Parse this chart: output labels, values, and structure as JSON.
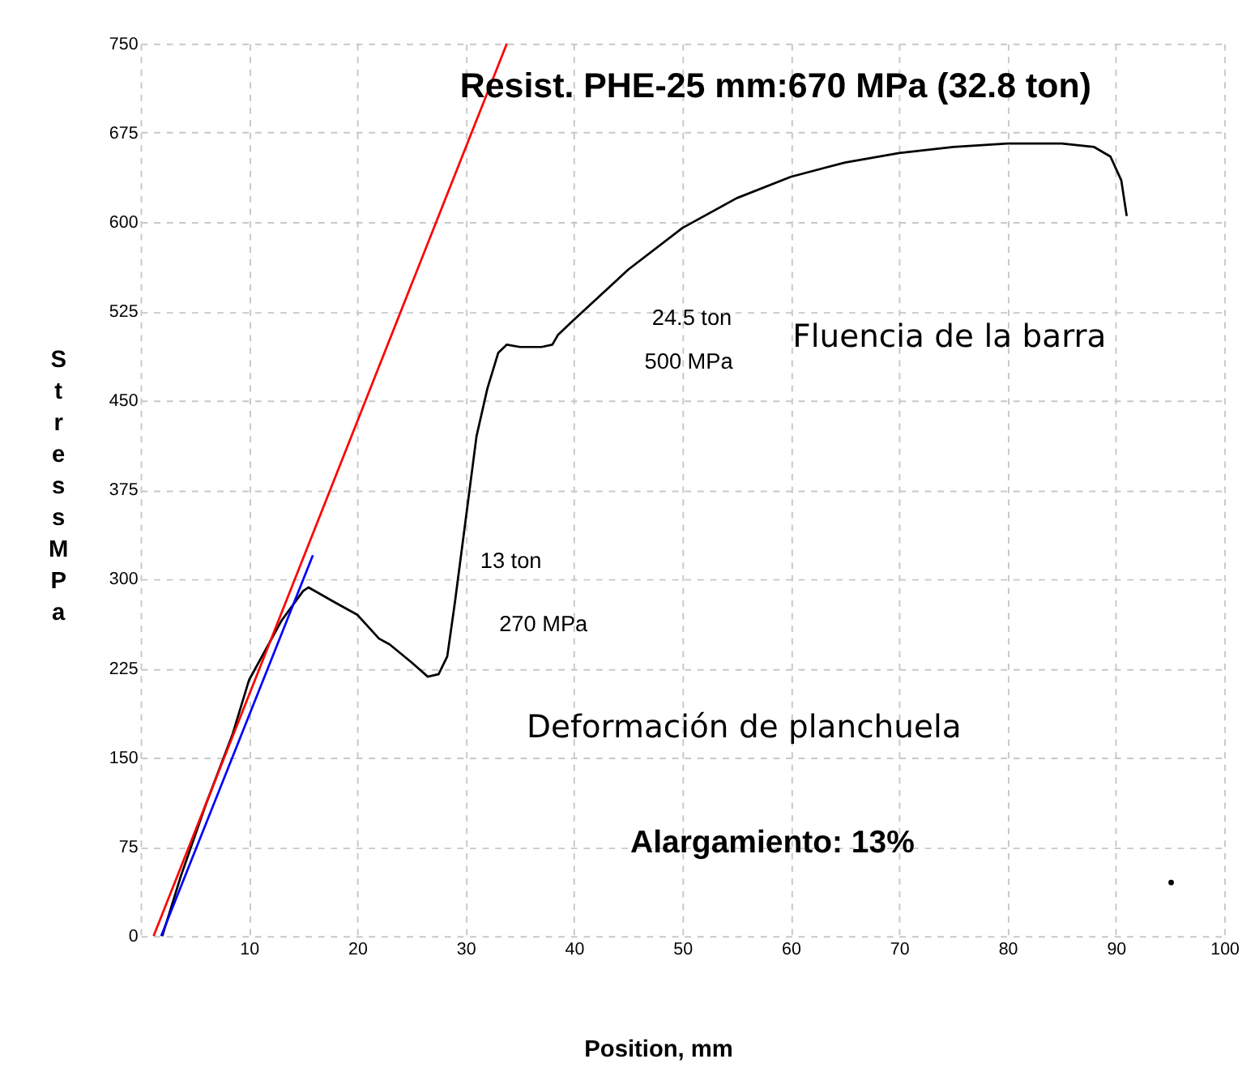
{
  "chart_data": {
    "type": "line",
    "title": "Resist. PHE-25 mm:670 MPa (32.8 ton)",
    "xlabel": "Position, mm",
    "ylabel": "Stress MPa",
    "annotations": [
      "13 ton",
      "270 MPa",
      "24.5 ton",
      "500 MPa",
      "Fluencia de la barra",
      "Deformación de planchuela",
      "Alargamiento: 13%"
    ],
    "xlim": [
      0,
      100
    ],
    "xticks": [
      {
        "value": 0,
        "label": null
      },
      10,
      20,
      30,
      40,
      50,
      60,
      70,
      80,
      90,
      100
    ],
    "ylim": [
      0,
      750
    ],
    "yticks": [
      0,
      75,
      150,
      225,
      300,
      375,
      450,
      525,
      600,
      675,
      750
    ],
    "grid": true,
    "marker": "none",
    "line_style": "solid",
    "series": [
      {
        "color": "#000000",
        "x": [
          2,
          3.7,
          6,
          8.5,
          10,
          13,
          15,
          15.5,
          18,
          20,
          22,
          23,
          25,
          26.5,
          27.5,
          28.3,
          29,
          30,
          31,
          32,
          33,
          33.8,
          35,
          37,
          38,
          38.5,
          40,
          45,
          50,
          55,
          60,
          65,
          70,
          75,
          80,
          85,
          88,
          89.5,
          90.5,
          91
        ],
        "values": [
          0,
          50,
          110,
          170,
          215,
          265,
          290,
          293,
          280,
          270,
          250,
          245,
          230,
          218,
          220,
          235,
          280,
          350,
          420,
          460,
          490,
          497,
          495,
          495,
          497,
          505,
          518,
          560,
          595,
          620,
          638,
          650,
          658,
          663,
          666,
          666,
          663,
          655,
          635,
          605
        ]
      },
      {
        "color": "#ff0000",
        "x": [
          1.2,
          33.8
        ],
        "values": [
          0,
          750
        ]
      },
      {
        "color": "#0000ff",
        "x": [
          1.9,
          15.9
        ],
        "values": [
          0,
          320
        ]
      },
      {
        "type": "scatter",
        "color": "#000000",
        "x": [
          95.1
        ],
        "values": [
          45
        ]
      }
    ]
  }
}
